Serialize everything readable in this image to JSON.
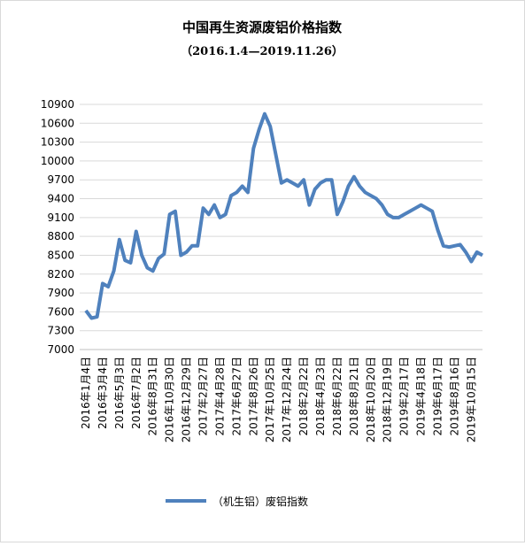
{
  "chart_data": {
    "type": "line",
    "title": "中国再生资源废铝价格指数",
    "subtitle": "（2016.1.4—2019.11.26）",
    "categories": [
      "2016年1月4日",
      null,
      null,
      "2016年3月4日",
      null,
      null,
      "2016年5月3日",
      null,
      null,
      "2016年7月2日",
      null,
      null,
      "2016年8月31日",
      null,
      null,
      "2016年10月30日",
      null,
      null,
      "2016年12月29日",
      null,
      null,
      "2017年2月27日",
      null,
      null,
      "2017年4月28日",
      null,
      null,
      "2017年6月27日",
      null,
      null,
      "2017年8月26日",
      null,
      null,
      "2017年10月25日",
      null,
      null,
      "2017年12月24日",
      null,
      null,
      "2018年2月22日",
      null,
      null,
      "2018年4月23日",
      null,
      null,
      "2018年6月22日",
      null,
      null,
      "2018年8月21日",
      null,
      null,
      "2018年10月20日",
      null,
      null,
      "2018年12月19日",
      null,
      null,
      "2019年2月17日",
      null,
      null,
      "2019年4月18日",
      null,
      null,
      "2019年6月17日",
      null,
      null,
      "2019年8月16日",
      null,
      null,
      "2019年10月15日",
      null,
      null
    ],
    "series": [
      {
        "name": "（机生铝）废铝指数",
        "color": "#4f81bd",
        "values": [
          7620,
          7500,
          7520,
          8050,
          8000,
          8250,
          8750,
          8420,
          8380,
          8880,
          8500,
          8300,
          8250,
          8450,
          8520,
          9150,
          9200,
          8500,
          8550,
          8650,
          8650,
          9250,
          9150,
          9300,
          9100,
          9150,
          9450,
          9500,
          9600,
          9500,
          10200,
          10500,
          10750,
          10550,
          10100,
          9650,
          9700,
          9650,
          9600,
          9700,
          9300,
          9550,
          9650,
          9700,
          9700,
          9150,
          9350,
          9600,
          9750,
          9600,
          9500,
          9450,
          9400,
          9300,
          9150,
          9100,
          9100,
          9150,
          9200,
          9250,
          9300,
          9250,
          9200,
          8900,
          8650,
          8630,
          8650,
          8670,
          8550,
          8400,
          8550,
          8500
        ]
      }
    ],
    "ylim": [
      7000,
      10900
    ],
    "yticks": [
      7000,
      7300,
      7600,
      7900,
      8200,
      8500,
      8800,
      9100,
      9400,
      9700,
      10000,
      10300,
      10600,
      10900
    ],
    "grid": true
  }
}
